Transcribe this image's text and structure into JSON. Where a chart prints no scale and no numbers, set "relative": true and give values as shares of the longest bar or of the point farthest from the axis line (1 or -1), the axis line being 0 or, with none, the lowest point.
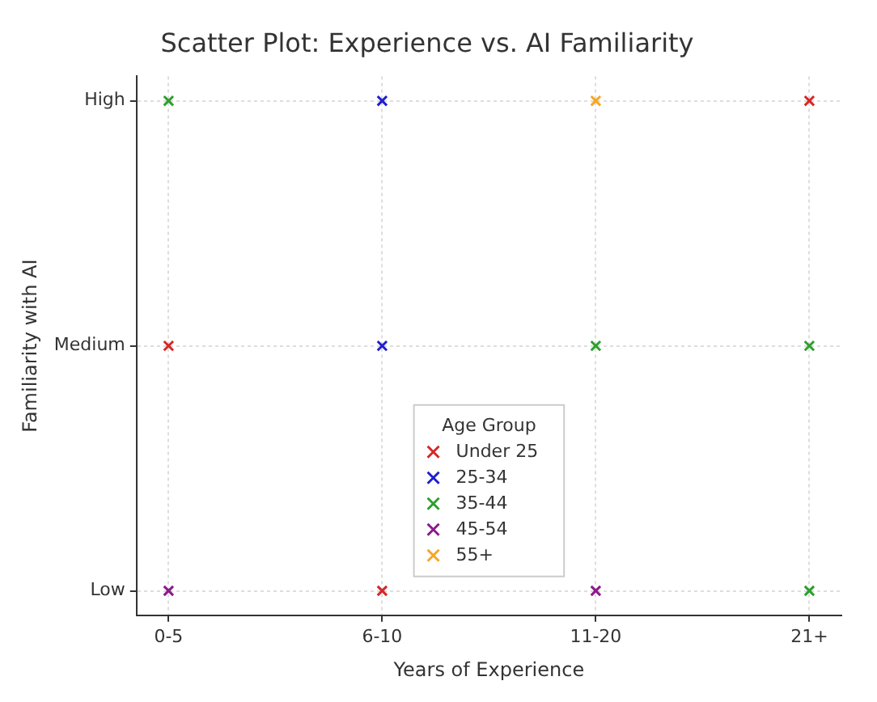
{
  "chart_data": {
    "type": "scatter",
    "title": "Scatter Plot: Experience vs. AI Familiarity",
    "xlabel": "Years of Experience",
    "ylabel": "Familiarity with AI",
    "legend_title": "Age Group",
    "categories": [
      "0-5",
      "6-10",
      "11-20",
      "21+"
    ],
    "y_categories": [
      "High",
      "Medium",
      "Low"
    ],
    "series": [
      {
        "name": "Under 25",
        "color": "#d62728",
        "x": [
          "0-5",
          "6-10",
          "21+"
        ],
        "values": [
          0.5,
          0,
          1
        ]
      },
      {
        "name": "25-34",
        "color": "#1f1fd0",
        "x": [
          "6-10",
          "6-10"
        ],
        "values": [
          1,
          0.5
        ]
      },
      {
        "name": "35-44",
        "color": "#2ca02c",
        "x": [
          "0-5",
          "11-20",
          "21+",
          "21+"
        ],
        "values": [
          1,
          0.5,
          0,
          0.5
        ]
      },
      {
        "name": "45-54",
        "color": "#8b1a8b",
        "x": [
          "0-5",
          "11-20"
        ],
        "values": [
          0,
          0
        ]
      },
      {
        "name": "55+",
        "color": "#f5a623",
        "x": [
          "11-20"
        ],
        "values": [
          1
        ]
      }
    ],
    "relative": true,
    "marker": "cross",
    "grid": true,
    "legend": "bottom"
  }
}
